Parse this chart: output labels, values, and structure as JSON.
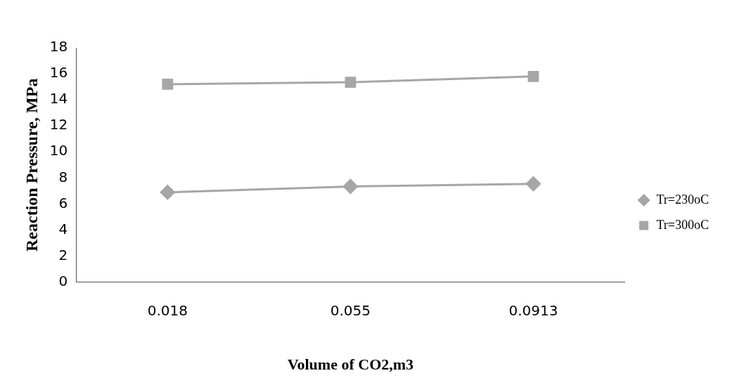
{
  "chart_data": {
    "type": "line",
    "xlabel": "Volume of CO2,m3",
    "ylabel": "Reaction Pressure, MPa",
    "categories": [
      "0.018",
      "0.055",
      "0.0913"
    ],
    "series": [
      {
        "name": "Tr=230oC",
        "color": "#a6a6a6",
        "marker": "diamond",
        "values": [
          6.9,
          7.35,
          7.55
        ]
      },
      {
        "name": "Tr=300oC",
        "color": "#a6a6a6",
        "marker": "square",
        "values": [
          15.2,
          15.35,
          15.8
        ]
      }
    ],
    "ylim": [
      0,
      18
    ],
    "yticks": [
      0,
      2,
      4,
      6,
      8,
      10,
      12,
      14,
      16,
      18
    ],
    "grid": false,
    "legend": "right"
  }
}
